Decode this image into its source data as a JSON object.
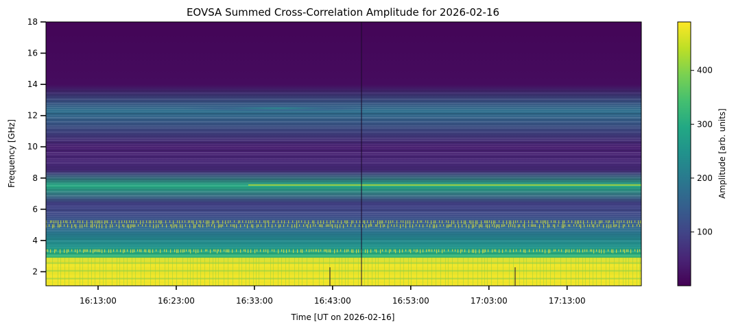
{
  "chart_data": {
    "type": "heatmap",
    "title": "EOVSA Summed Cross-Correlation Amplitude for 2026-02-16",
    "xlabel": "Time [UT on 2026-02-16]",
    "ylabel": "Frequency [GHz]",
    "x_range": [
      "16:06:20",
      "17:22:30"
    ],
    "x_ticks": [
      "16:13:00",
      "16:23:00",
      "16:33:00",
      "16:43:00",
      "16:53:00",
      "17:03:00",
      "17:13:00"
    ],
    "ylim": [
      1.1,
      18.0
    ],
    "y_ticks": [
      2,
      4,
      6,
      8,
      10,
      12,
      14,
      16,
      18
    ],
    "colorscale": "viridis",
    "colorbar": {
      "label": "Amplitude [arb. units]",
      "range": [
        0,
        490
      ],
      "ticks": [
        100,
        200,
        300,
        400
      ]
    },
    "spectral_profile": [
      {
        "freq_ghz": 1.2,
        "amplitude": 470
      },
      {
        "freq_ghz": 1.6,
        "amplitude": 480
      },
      {
        "freq_ghz": 2.0,
        "amplitude": 430
      },
      {
        "freq_ghz": 2.4,
        "amplitude": 470
      },
      {
        "freq_ghz": 2.8,
        "amplitude": 350
      },
      {
        "freq_ghz": 3.2,
        "amplitude": 300
      },
      {
        "freq_ghz": 3.6,
        "amplitude": 250
      },
      {
        "freq_ghz": 4.0,
        "amplitude": 230
      },
      {
        "freq_ghz": 4.4,
        "amplitude": 200
      },
      {
        "freq_ghz": 5.0,
        "amplitude": 150
      },
      {
        "freq_ghz": 5.6,
        "amplitude": 110
      },
      {
        "freq_ghz": 6.4,
        "amplitude": 90
      },
      {
        "freq_ghz": 7.5,
        "amplitude": 300
      },
      {
        "freq_ghz": 8.5,
        "amplitude": 60
      },
      {
        "freq_ghz": 10.0,
        "amplitude": 40
      },
      {
        "freq_ghz": 12.3,
        "amplitude": 180
      },
      {
        "freq_ghz": 14.0,
        "amplitude": 15
      },
      {
        "freq_ghz": 18.0,
        "amplitude": 5
      }
    ]
  }
}
